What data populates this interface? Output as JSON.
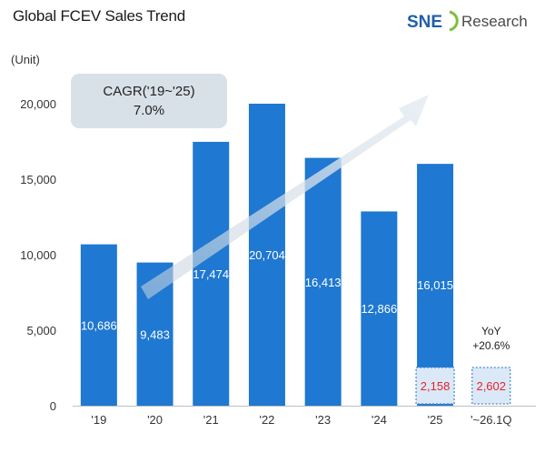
{
  "title": "Global FCEV Sales Trend",
  "unit_label": "(Unit)",
  "logo": {
    "brand": "SNE",
    "suffix": "Research"
  },
  "cagr": {
    "line1": "CAGR('19~'25)",
    "line2": "7.0%"
  },
  "yoy": {
    "line1": "YoY",
    "line2": "+20.6%"
  },
  "colors": {
    "bar": "#1f78d1",
    "bar_dark": "#1565c0",
    "q1_fill": "#dbe8f7",
    "q1_border": "#4a86c8",
    "q1_text": "#e8232a",
    "label_text": "#ffffff",
    "axis_text": "#333333",
    "cagr_box": "#d9e1e8"
  },
  "chart_data": {
    "type": "bar",
    "title": "Global FCEV Sales Trend",
    "ylabel": "(Unit)",
    "ylim": [
      0,
      20000
    ],
    "yticks": [
      0,
      5000,
      10000,
      15000,
      20000
    ],
    "ytick_labels": [
      "0",
      "5,000",
      "10,000",
      "15,000",
      "20,000"
    ],
    "categories": [
      "'19",
      "'20",
      "'21",
      "'22",
      "'23",
      "'24",
      "'25",
      "'~26.1Q"
    ],
    "series": [
      {
        "values": [
          10686,
          9483,
          17474,
          20704,
          16413,
          12866,
          16015,
          null
        ],
        "labels": [
          "10,686",
          "9,483",
          "17,474",
          "20,704",
          "16,413",
          "12,866",
          "16,015",
          ""
        ]
      },
      {
        "values": [
          null,
          null,
          null,
          null,
          null,
          null,
          2158,
          2602
        ],
        "labels": [
          "",
          "",
          "",
          "",
          "",
          "",
          "2,158",
          "2,602"
        ]
      }
    ],
    "annotations": [
      "CAGR('19~'25) 7.0%",
      "YoY +20.6%"
    ],
    "grid": false,
    "legend": "none"
  }
}
